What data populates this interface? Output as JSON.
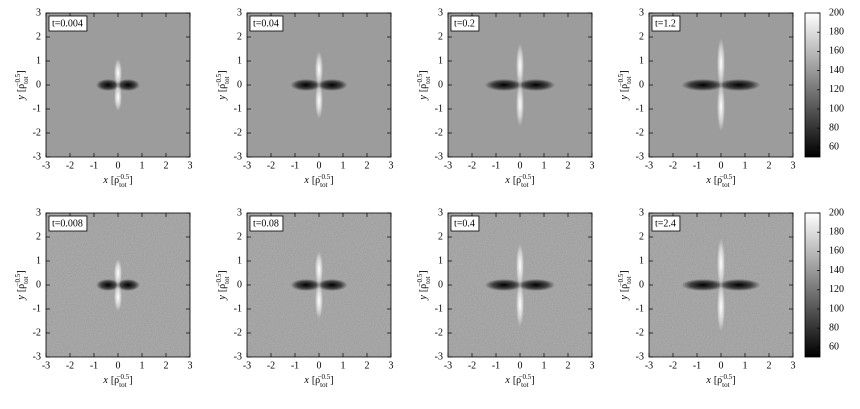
{
  "chart_data": [
    {
      "type": "heatmap",
      "label": "t=0.004",
      "xlim": [
        -3,
        3
      ],
      "ylim": [
        -3,
        3
      ],
      "xticks": [
        -3,
        -2,
        -1,
        0,
        1,
        2,
        3
      ],
      "yticks": [
        -3,
        -2,
        -1,
        0,
        1,
        2,
        3
      ],
      "xlabel": [
        "x",
        "[ρ",
        "tot",
        "−0.5",
        "]"
      ],
      "ylabel": [
        "y",
        "[ρ",
        "tot",
        "−0.5",
        "]"
      ]
    },
    {
      "type": "heatmap",
      "label": "t=0.04",
      "xlim": [
        -3,
        3
      ],
      "ylim": [
        -3,
        3
      ],
      "xticks": [
        -3,
        -2,
        -1,
        0,
        1,
        2,
        3
      ],
      "yticks": [
        -3,
        -2,
        -1,
        0,
        1,
        2,
        3
      ],
      "xlabel": [
        "x",
        "[ρ",
        "tot",
        "−0.5",
        "]"
      ],
      "ylabel": [
        "y",
        "[ρ",
        "tot",
        "−0.5",
        "]"
      ]
    },
    {
      "type": "heatmap",
      "label": "t=0.2",
      "xlim": [
        -3,
        3
      ],
      "ylim": [
        -3,
        3
      ],
      "xticks": [
        -3,
        -2,
        -1,
        0,
        1,
        2,
        3
      ],
      "yticks": [
        -3,
        -2,
        -1,
        0,
        1,
        2,
        3
      ],
      "xlabel": [
        "x",
        "[ρ",
        "tot",
        "−0.5",
        "]"
      ],
      "ylabel": [
        "y",
        "[ρ",
        "tot",
        "−0.5",
        "]"
      ]
    },
    {
      "type": "heatmap",
      "label": "t=1.2",
      "xlim": [
        -3,
        3
      ],
      "ylim": [
        -3,
        3
      ],
      "xticks": [
        -3,
        -2,
        -1,
        0,
        1,
        2,
        3
      ],
      "yticks": [
        -3,
        -2,
        -1,
        0,
        1,
        2,
        3
      ],
      "xlabel": [
        "x",
        "[ρ",
        "tot",
        "−0.5",
        "]"
      ],
      "ylabel": [
        "y",
        "[ρ",
        "tot",
        "−0.5",
        "]"
      ],
      "colorbar": {
        "lim": [
          50,
          200
        ],
        "ticks": [
          60,
          80,
          100,
          120,
          140,
          160,
          180,
          200
        ]
      }
    },
    {
      "type": "heatmap",
      "label": "t=0.008",
      "xlim": [
        -3,
        3
      ],
      "ylim": [
        -3,
        3
      ],
      "xticks": [
        -3,
        -2,
        -1,
        0,
        1,
        2,
        3
      ],
      "yticks": [
        -3,
        -2,
        -1,
        0,
        1,
        2,
        3
      ],
      "xlabel": [
        "x",
        "[ρ",
        "tot",
        "−0.5",
        "]"
      ],
      "ylabel": [
        "y",
        "[ρ",
        "tot",
        "−0.5",
        "]"
      ]
    },
    {
      "type": "heatmap",
      "label": "t=0.08",
      "xlim": [
        -3,
        3
      ],
      "ylim": [
        -3,
        3
      ],
      "xticks": [
        -3,
        -2,
        -1,
        0,
        1,
        2,
        3
      ],
      "yticks": [
        -3,
        -2,
        -1,
        0,
        1,
        2,
        3
      ],
      "xlabel": [
        "x",
        "[ρ",
        "tot",
        "−0.5",
        "]"
      ],
      "ylabel": [
        "y",
        "[ρ",
        "tot",
        "−0.5",
        "]"
      ]
    },
    {
      "type": "heatmap",
      "label": "t=0.4",
      "xlim": [
        -3,
        3
      ],
      "ylim": [
        -3,
        3
      ],
      "xticks": [
        -3,
        -2,
        -1,
        0,
        1,
        2,
        3
      ],
      "yticks": [
        -3,
        -2,
        -1,
        0,
        1,
        2,
        3
      ],
      "xlabel": [
        "x",
        "[ρ",
        "tot",
        "−0.5",
        "]"
      ],
      "ylabel": [
        "y",
        "[ρ",
        "tot",
        "−0.5",
        "]"
      ]
    },
    {
      "type": "heatmap",
      "label": "t=2.4",
      "xlim": [
        -3,
        3
      ],
      "ylim": [
        -3,
        3
      ],
      "xticks": [
        -3,
        -2,
        -1,
        0,
        1,
        2,
        3
      ],
      "yticks": [
        -3,
        -2,
        -1,
        0,
        1,
        2,
        3
      ],
      "xlabel": [
        "x",
        "[ρ",
        "tot",
        "−0.5",
        "]"
      ],
      "ylabel": [
        "y",
        "[ρ",
        "tot",
        "−0.5",
        "]"
      ],
      "colorbar": {
        "lim": [
          50,
          200
        ],
        "ticks": [
          60,
          80,
          100,
          120,
          140,
          160,
          180,
          200
        ]
      }
    }
  ]
}
